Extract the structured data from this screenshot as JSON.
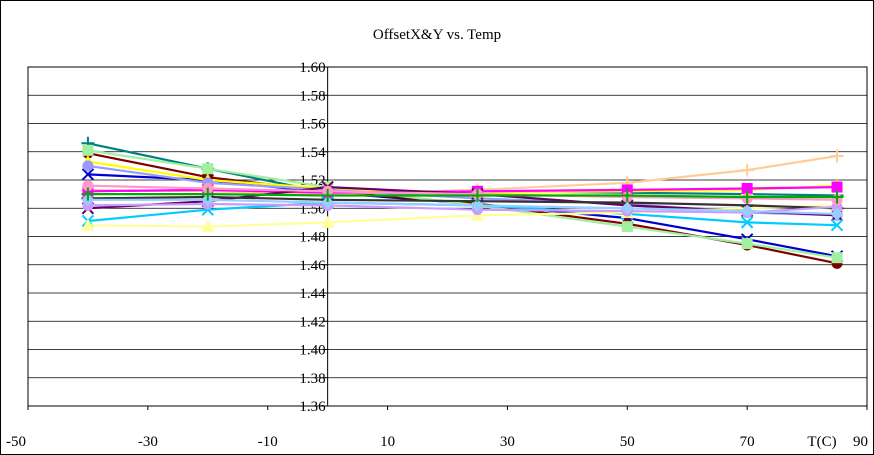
{
  "chart_data": {
    "type": "line",
    "title": "OffsetX&Y vs. Temp",
    "xlabel": "T(C)",
    "ylabel": "",
    "xlim": [
      -50,
      90
    ],
    "ylim": [
      1.36,
      1.6
    ],
    "x_ticks": [
      "-50",
      "-30",
      "-10",
      "10",
      "30",
      "50",
      "70",
      "90"
    ],
    "x_tick_values": [
      -50,
      -30,
      -10,
      10,
      30,
      50,
      70,
      90
    ],
    "y_ticks": [
      "1.36",
      "1.38",
      "1.40",
      "1.42",
      "1.44",
      "1.46",
      "1.48",
      "1.50",
      "1.52",
      "1.54",
      "1.56",
      "1.58",
      "1.60"
    ],
    "y_tick_values": [
      1.36,
      1.38,
      1.4,
      1.42,
      1.44,
      1.46,
      1.48,
      1.5,
      1.52,
      1.54,
      1.56,
      1.58,
      1.6
    ],
    "grid": "horizontal",
    "legend": "none",
    "x": [
      -40,
      -20,
      0,
      25,
      50,
      70,
      85
    ],
    "series": [
      {
        "color": "#0000CC",
        "marker": "cross",
        "values": [
          1.524,
          1.52,
          1.511,
          1.503,
          1.493,
          1.478,
          1.466
        ]
      },
      {
        "color": "#800000",
        "marker": "circle",
        "values": [
          1.539,
          1.522,
          1.512,
          1.503,
          1.489,
          1.474,
          1.461
        ]
      },
      {
        "color": "#008080",
        "marker": "plus",
        "values": [
          1.546,
          1.528,
          1.511,
          1.512,
          1.511,
          1.51,
          1.509
        ]
      },
      {
        "color": "#A0F0A0",
        "marker": "square",
        "values": [
          1.541,
          1.528,
          1.515,
          1.502,
          1.487,
          1.475,
          1.465
        ]
      },
      {
        "color": "#FFFF00",
        "marker": "triangle",
        "values": [
          1.533,
          1.52,
          1.514,
          1.511,
          1.512,
          1.513,
          1.516
        ]
      },
      {
        "color": "#9999FF",
        "marker": "circle",
        "values": [
          1.53,
          1.518,
          1.513,
          1.507,
          1.503,
          1.497,
          1.495
        ]
      },
      {
        "color": "#FFCC99",
        "marker": "plus",
        "values": [
          1.513,
          1.512,
          1.51,
          1.513,
          1.518,
          1.527,
          1.537
        ]
      },
      {
        "color": "#FF00FF",
        "marker": "square",
        "values": [
          1.512,
          1.513,
          1.511,
          1.512,
          1.513,
          1.514,
          1.515
        ]
      },
      {
        "color": "#660066",
        "marker": "cross",
        "values": [
          1.5,
          1.505,
          1.515,
          1.51,
          1.502,
          1.498,
          1.495
        ]
      },
      {
        "color": "#00CCFF",
        "marker": "cross",
        "values": [
          1.491,
          1.499,
          1.504,
          1.502,
          1.496,
          1.49,
          1.488
        ]
      },
      {
        "color": "#FFFF99",
        "marker": "triangle",
        "values": [
          1.488,
          1.487,
          1.49,
          1.495,
          1.497,
          1.5,
          1.502
        ]
      },
      {
        "color": "#333333",
        "marker": "plus",
        "values": [
          1.507,
          1.508,
          1.506,
          1.505,
          1.504,
          1.502,
          1.5
        ]
      },
      {
        "color": "#CC99FF",
        "marker": "circle",
        "values": [
          1.502,
          1.503,
          1.502,
          1.499,
          1.498,
          1.497,
          1.501
        ]
      },
      {
        "color": "#99CCFF",
        "marker": "diamond",
        "values": [
          1.506,
          1.506,
          1.504,
          1.502,
          1.5,
          1.498,
          1.496
        ]
      },
      {
        "color": "#FF99CC",
        "marker": "circle",
        "values": [
          1.516,
          1.514,
          1.512,
          1.51,
          1.508,
          1.507,
          1.506
        ]
      },
      {
        "color": "#00AA00",
        "marker": "plus",
        "values": [
          1.51,
          1.51,
          1.509,
          1.509,
          1.509,
          1.508,
          1.508
        ]
      }
    ]
  }
}
